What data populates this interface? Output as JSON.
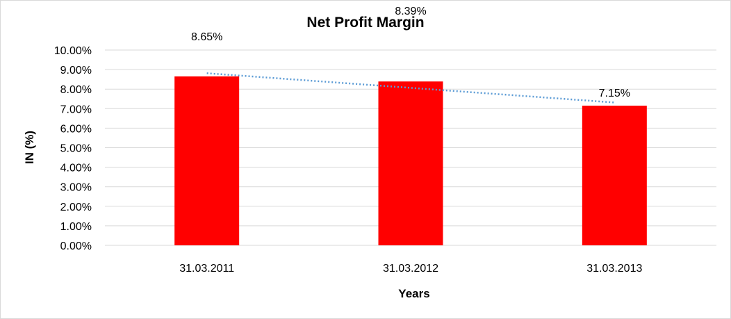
{
  "chart_data": {
    "type": "bar",
    "title": "Net Profit Margin",
    "xlabel": "Years",
    "ylabel": "IN (%)",
    "categories": [
      "31.03.2011",
      "31.03.2012",
      "31.03.2013"
    ],
    "values": [
      8.65,
      8.39,
      7.15
    ],
    "data_labels": [
      "8.65%",
      "8.39%",
      "7.15%"
    ],
    "ylim": [
      0,
      10
    ],
    "y_ticks": [
      "0.00%",
      "1.00%",
      "2.00%",
      "3.00%",
      "4.00%",
      "5.00%",
      "6.00%",
      "7.00%",
      "8.00%",
      "9.00%",
      "10.00%"
    ],
    "grid": true,
    "legend": "none",
    "trendline": "linear",
    "colors": {
      "bar": "#ff0000",
      "trendline": "#5b9bd5",
      "grid": "#d9d9d9"
    }
  }
}
